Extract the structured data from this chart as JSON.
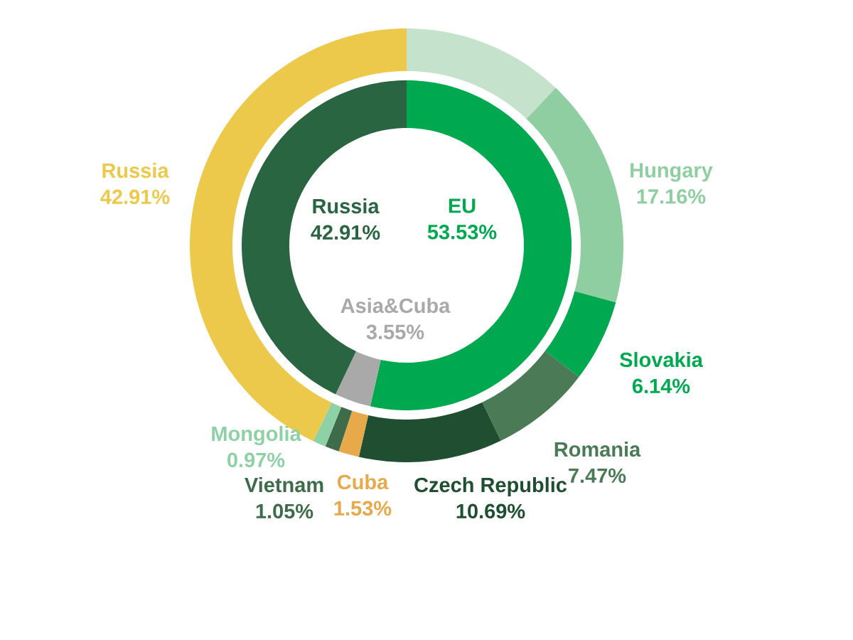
{
  "chart_data": [
    {
      "type": "donut",
      "categories": [
        "EU",
        "Asia&Cuba",
        "Russia"
      ],
      "values": [
        53.53,
        3.55,
        42.91
      ],
      "colors": [
        "#00a84f",
        "#a9a9a9",
        "#2a6541"
      ],
      "value_labels": [
        "53.53%",
        "3.55%",
        "42.91%"
      ]
    },
    {
      "type": "donut",
      "categories": [
        null,
        "Hungary",
        "Slovakia",
        "Romania",
        "Czech Republic",
        "Cuba",
        "Vietnam",
        "Mongolia",
        "Russia"
      ],
      "values": [
        12.07,
        17.16,
        6.14,
        7.47,
        10.69,
        1.53,
        1.05,
        0.97,
        42.91
      ],
      "colors": [
        "#c5e3cc",
        "#8fcea0",
        "#00a84f",
        "#4a7a56",
        "#1f4f30",
        "#e8a94a",
        "#3e6b4a",
        "#8fd1a6",
        "#ecc94b"
      ],
      "value_labels": [
        null,
        "17.16%",
        "6.14%",
        "7.47%",
        "10.69%",
        "1.53%",
        "1.05%",
        "0.97%",
        "42.91%"
      ]
    }
  ]
}
